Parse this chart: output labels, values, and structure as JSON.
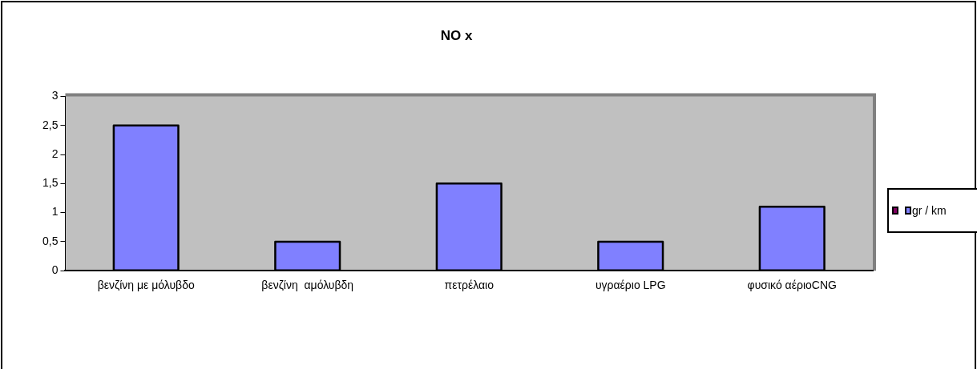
{
  "chart_data": {
    "type": "bar",
    "title": "NO x",
    "categories": [
      "βενζίνη με μόλυβδο",
      "βενζίνη  αμόλυβδη",
      "πετρέλαιο",
      "υγραέριο LPG",
      "φυσικό αέριοCNG"
    ],
    "series": [
      {
        "name": "gr / km",
        "color": "#8080ff",
        "values": [
          2.5,
          0.5,
          1.5,
          0.5,
          1.1
        ]
      }
    ],
    "ylim": [
      0,
      3
    ],
    "yticks": [
      0,
      {
        "value": 0.5,
        "label": "0,5"
      },
      1,
      {
        "value": 1.5,
        "label": "1,5"
      },
      2,
      {
        "value": 2.5,
        "label": "2,5"
      },
      3
    ],
    "grid": false,
    "legend": "right"
  }
}
